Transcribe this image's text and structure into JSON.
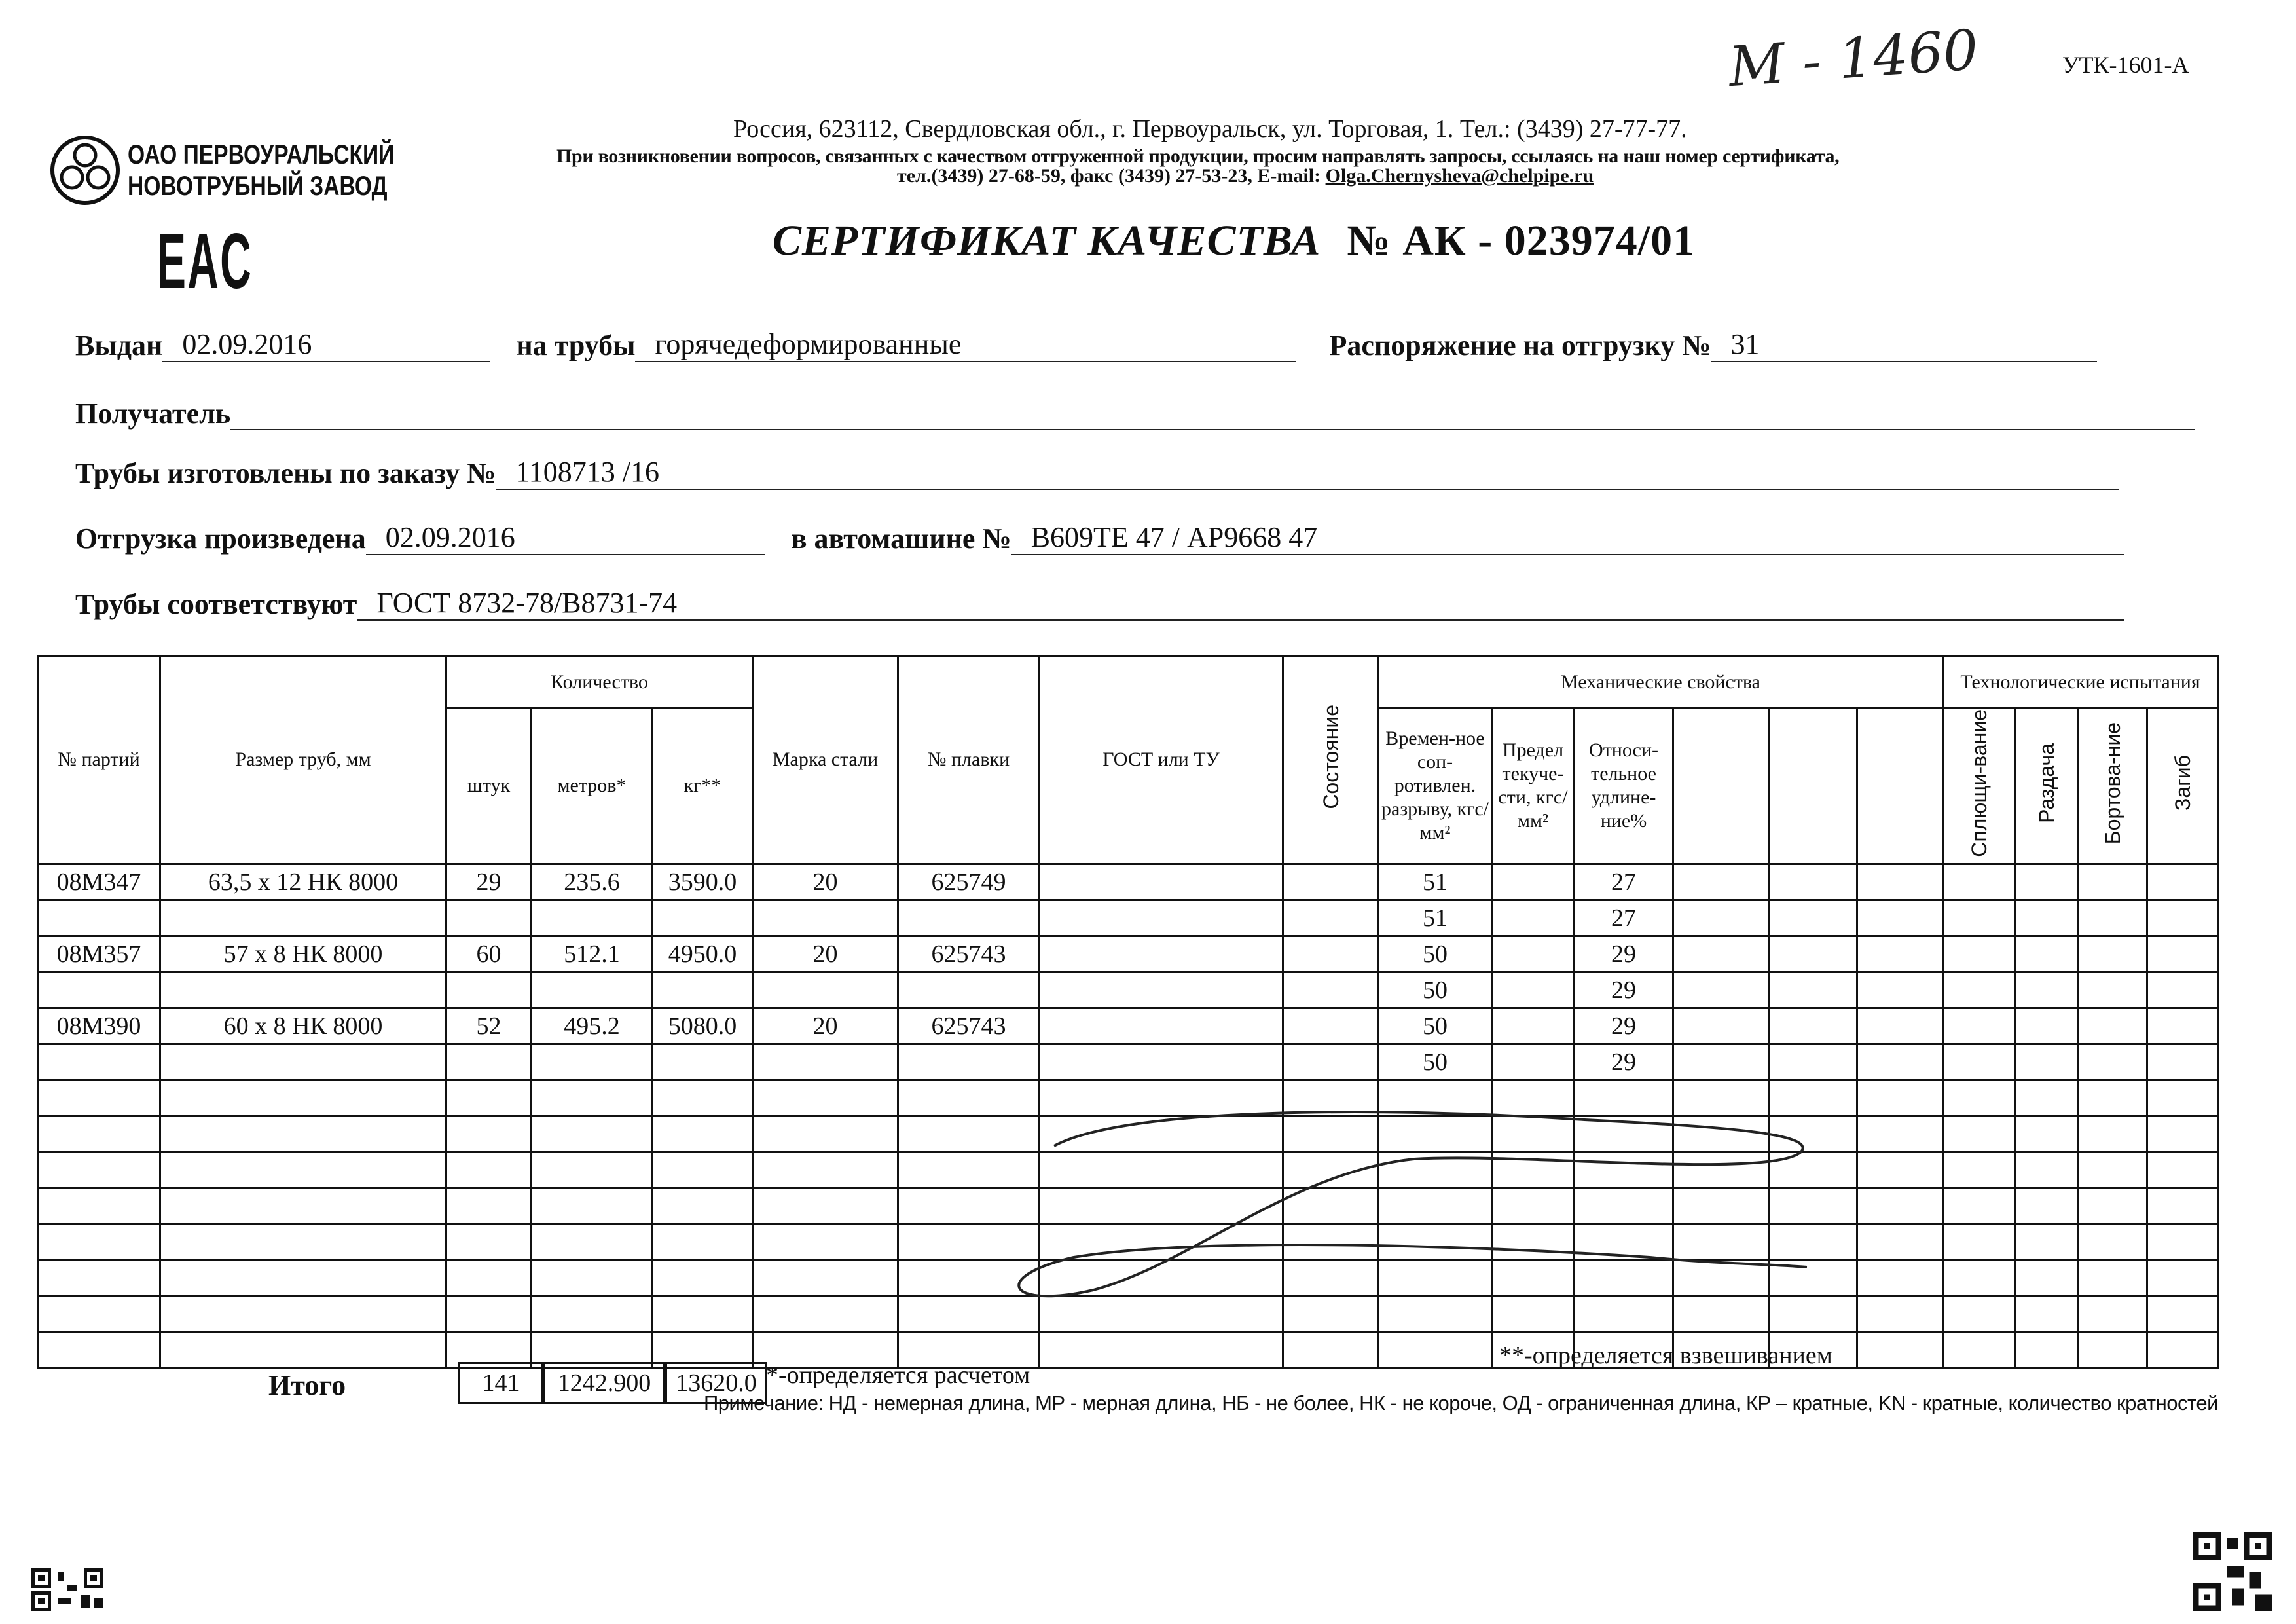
{
  "handwritten_note": "М - 1460",
  "form_code": "УТК-1601-А",
  "company": {
    "name_line1": "ОАО ПЕРВОУРАЛЬСКИЙ",
    "name_line2": "НОВОТРУБНЫЙ ЗАВОД",
    "eac_mark": "EAC"
  },
  "address": {
    "line1": "Россия, 623112, Свердловская обл., г. Первоуральск, ул. Торговая, 1. Тел.: (3439) 27-77-77.",
    "line2": "При возникновении вопросов, связанных с качеством отгруженной продукции, просим направлять запросы, ссылаясь на наш номер сертификата,",
    "line3_prefix": "тел.(3439) 27-68-59, факс (3439) 27-53-23, E-mail: ",
    "email": "Olga.Chernysheva@chelpipe.ru"
  },
  "title": "СЕРТИФИКАТ КАЧЕСТВА",
  "cert_number": "№  АК -  023974/01",
  "fields": {
    "issued_label": "Выдан",
    "issued_value": "02.09.2016",
    "pipes_label": "на трубы",
    "pipes_value": "горячедеформированные",
    "order_label": "Распоряжение на отгрузку №",
    "order_value": "31",
    "recipient_label": "Получатель",
    "recipient_value": "",
    "made_label": "Трубы изготовлены по заказу №",
    "made_value": "1108713   /16",
    "shipped_label": "Отгрузка произведена",
    "shipped_value": "02.09.2016",
    "vehicle_label": "в автомашине №",
    "vehicle_value": "В609ТЕ 47 / АР9668 47",
    "conform_label": "Трубы соответствуют",
    "conform_value": "ГОСТ 8732-78/В8731-74"
  },
  "table": {
    "headers": {
      "batch": "№ партий",
      "size": "Размер труб, мм",
      "quantity": "Количество",
      "pcs": "штук",
      "meters": "метров*",
      "kg": "кг**",
      "steel": "Марка стали",
      "heat": "№ плавки",
      "gost": "ГОСТ или ТУ",
      "state": "Состояние",
      "mech": "Механические свойства",
      "tensile": "Времен-ное соп-ротивлен. разрыву, кгс/мм²",
      "yield": "Предел текуче-сти, кгс/мм²",
      "elong": "Относи-тельное удлине-ние%",
      "tech": "Технологические испытания",
      "flatten": "Сплющи-вание",
      "expand": "Раздача",
      "flange": "Бортова-ние",
      "bend": "Загиб"
    },
    "rows": [
      {
        "batch": "08М347",
        "size": "63,5 х 12 НК 8000",
        "pcs": "29",
        "meters": "235.6",
        "kg": "3590.0",
        "steel": "20",
        "heat": "625749",
        "tensile": "51",
        "elong": "27"
      },
      {
        "tensile": "51",
        "elong": "27"
      },
      {
        "batch": "08М357",
        "size": "57 х 8 НК 8000",
        "pcs": "60",
        "meters": "512.1",
        "kg": "4950.0",
        "steel": "20",
        "heat": "625743",
        "tensile": "50",
        "elong": "29"
      },
      {
        "tensile": "50",
        "elong": "29"
      },
      {
        "batch": "08М390",
        "size": "60 х 8 НК 8000",
        "pcs": "52",
        "meters": "495.2",
        "kg": "5080.0",
        "steel": "20",
        "heat": "625743",
        "tensile": "50",
        "elong": "29"
      },
      {
        "tensile": "50",
        "elong": "29"
      },
      {},
      {},
      {},
      {},
      {},
      {},
      {},
      {}
    ],
    "totals": {
      "label": "Итого",
      "pcs": "141",
      "meters": "1242.900",
      "kg": "13620.0"
    }
  },
  "footnotes": {
    "calc": "*-определяется расчетом",
    "weigh": "**-определяется взвешиванием",
    "note": "Примечание: НД - немерная длина, МР - мерная длина, НБ - не более, НК - не короче, ОД - ограниченная длина, КР – кратные, KN - кратные, количество кратностей"
  }
}
